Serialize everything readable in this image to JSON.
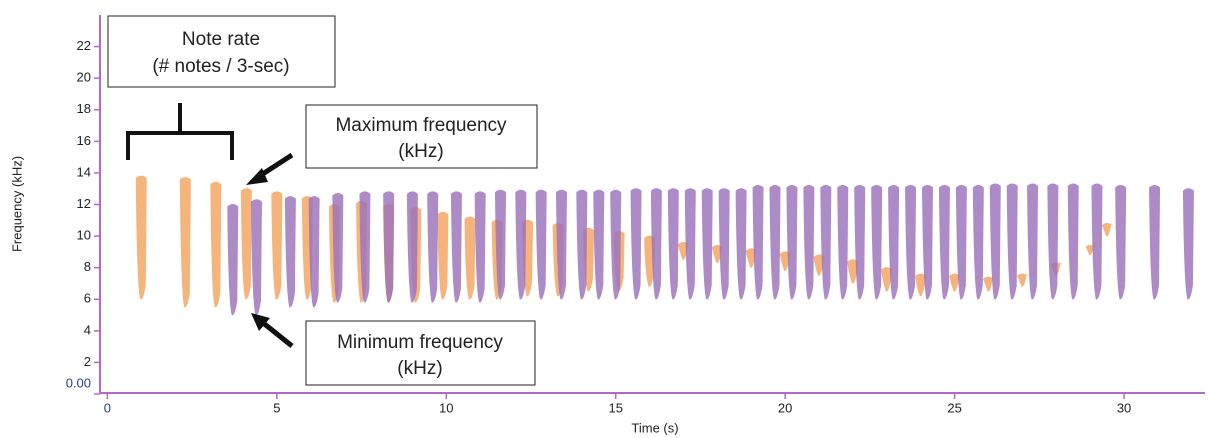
{
  "chart_data": {
    "type": "spectrogram",
    "xlabel": "Time (s)",
    "ylabel": "Frequency (kHz)",
    "xlim": [
      -0.1,
      32.3
    ],
    "ylim": [
      0,
      24
    ],
    "xticks": [
      0,
      5,
      10,
      15,
      20,
      25,
      30
    ],
    "yticks": [
      {
        "value": 0,
        "label": "0.00"
      },
      2,
      4,
      6,
      8,
      10,
      12,
      14,
      16,
      18,
      20,
      22
    ],
    "series": [
      {
        "color": "#f2a35e",
        "x": [
          1.0,
          2.3,
          3.2,
          4.1,
          5.0,
          5.9,
          6.7,
          7.5,
          8.3,
          9.1,
          9.9,
          10.7,
          11.5,
          12.4,
          13.3,
          14.2,
          15.1,
          16.0,
          17.0,
          18.0,
          19.0,
          20.0,
          21.0,
          22.0,
          23.0,
          24.0,
          25.0,
          26.0,
          27.0,
          28.0,
          29.0,
          29.5
        ],
        "low": [
          6.0,
          5.5,
          5.5,
          6.0,
          6.0,
          6.0,
          5.8,
          5.8,
          5.8,
          5.8,
          6.0,
          6.0,
          6.0,
          6.2,
          6.2,
          6.5,
          6.5,
          6.8,
          8.5,
          8.3,
          8.0,
          7.8,
          7.5,
          7.0,
          6.5,
          6.2,
          6.5,
          6.5,
          6.8,
          7.5,
          8.8,
          10.0
        ],
        "high": [
          13.8,
          13.7,
          13.4,
          13.0,
          12.8,
          12.5,
          12.0,
          12.2,
          12.0,
          11.8,
          11.5,
          11.2,
          11.0,
          11.0,
          10.8,
          10.5,
          10.3,
          10.0,
          9.6,
          9.4,
          9.2,
          9.0,
          8.8,
          8.5,
          8.0,
          7.6,
          7.6,
          7.4,
          7.6,
          8.3,
          9.4,
          10.8
        ]
      },
      {
        "color": "#9b72bb",
        "x": [
          3.7,
          4.4,
          5.4,
          6.1,
          6.8,
          7.6,
          8.3,
          9.0,
          9.6,
          10.3,
          11.0,
          11.6,
          12.2,
          12.8,
          13.4,
          14.0,
          14.5,
          15.0,
          15.6,
          16.2,
          16.7,
          17.2,
          17.7,
          18.2,
          18.7,
          19.2,
          19.7,
          20.2,
          20.7,
          21.2,
          21.7,
          22.2,
          22.7,
          23.2,
          23.7,
          24.2,
          24.7,
          25.2,
          25.7,
          26.2,
          26.7,
          27.3,
          27.9,
          28.5,
          29.2,
          29.9,
          30.9,
          31.9
        ],
        "low": [
          5.0,
          5.0,
          5.5,
          5.5,
          5.8,
          5.8,
          5.8,
          5.8,
          5.8,
          5.8,
          5.8,
          6.0,
          6.0,
          6.0,
          6.0,
          6.0,
          6.0,
          6.0,
          6.0,
          6.0,
          6.0,
          6.0,
          6.0,
          6.0,
          6.0,
          6.0,
          6.0,
          6.0,
          6.0,
          6.0,
          6.0,
          6.0,
          6.0,
          6.0,
          6.0,
          6.0,
          6.0,
          6.0,
          6.0,
          6.0,
          6.0,
          6.0,
          6.0,
          6.0,
          6.0,
          6.0,
          6.0,
          6.0
        ],
        "high": [
          12.0,
          12.3,
          12.5,
          12.5,
          12.7,
          12.8,
          12.8,
          12.8,
          12.8,
          12.8,
          12.8,
          12.9,
          12.9,
          12.9,
          12.9,
          12.9,
          12.9,
          12.9,
          13.0,
          13.0,
          13.0,
          13.0,
          13.0,
          13.0,
          13.0,
          13.2,
          13.2,
          13.2,
          13.2,
          13.2,
          13.2,
          13.2,
          13.2,
          13.2,
          13.2,
          13.2,
          13.2,
          13.2,
          13.2,
          13.3,
          13.3,
          13.3,
          13.3,
          13.3,
          13.3,
          13.2,
          13.2,
          13.0
        ]
      }
    ],
    "annotations": [
      {
        "lines": [
          "Note rate",
          "(# notes / 3-sec)"
        ]
      },
      {
        "lines": [
          "Maximum frequency",
          "(kHz)"
        ]
      },
      {
        "lines": [
          "Minimum frequency",
          "(kHz)"
        ]
      }
    ]
  }
}
